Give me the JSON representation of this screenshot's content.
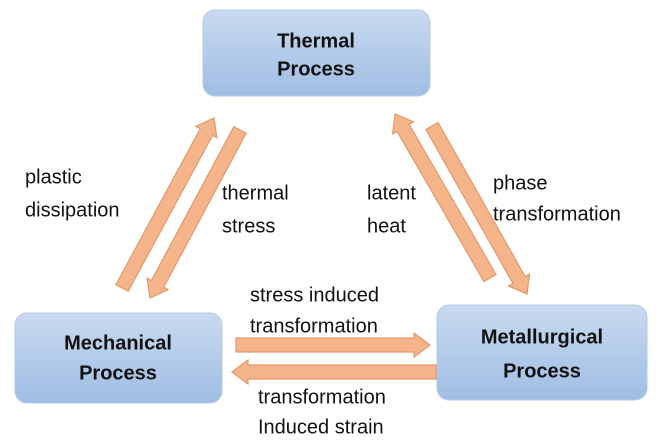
{
  "nodes": [
    {
      "lines": [
        "Thermal",
        "Process"
      ]
    },
    {
      "lines": [
        "Mechanical",
        "Process"
      ]
    },
    {
      "lines": [
        "Metallurgical",
        "Process"
      ]
    }
  ],
  "edges": [
    {
      "lines": [
        "plastic",
        "dissipation"
      ]
    },
    {
      "lines": [
        "thermal",
        "stress"
      ]
    },
    {
      "lines": [
        "latent",
        "heat"
      ]
    },
    {
      "lines": [
        "phase",
        "transformation"
      ]
    },
    {
      "lines": [
        "stress induced",
        "transformation"
      ]
    },
    {
      "lines": [
        "transformation",
        "Induced strain"
      ]
    }
  ]
}
